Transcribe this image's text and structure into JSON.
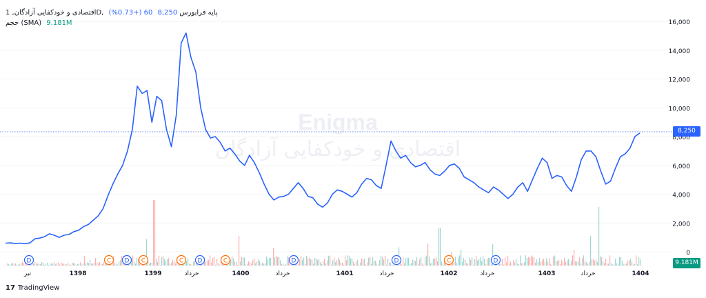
{
  "legend": {
    "symbol": "اقتصادی و خودکفایی آزادگان, 1D, پایه فرابورس",
    "last": "8,250",
    "change": "60 (+0.73%)",
    "volume_label": "حجم (SMA)",
    "volume_value": "9.181M"
  },
  "price_tag": "8,250",
  "volume_tag": "9.181M",
  "watermark": {
    "line1": "Enigma",
    "line2": "اقتصادی و خودکفایی آزادگان"
  },
  "brand": {
    "logo": "17",
    "name": "TradingView"
  },
  "colors": {
    "line": "#2962ff",
    "volume_up": "#26a69a",
    "volume_down": "#ef5350",
    "event_dividend": "#2962ff",
    "event_capital": "#ff6d00"
  },
  "chart_data": {
    "type": "line",
    "x_ticks": [
      "تیر",
      "1398",
      "1399",
      "خرداد",
      "1400",
      "خرداد",
      "1401",
      "خرداد",
      "1402",
      "خرداد",
      "1403",
      "خرداد",
      "1404"
    ],
    "y_ticks": [
      "16,000",
      "14,000",
      "12,000",
      "10,000",
      "8,000",
      "6,000",
      "4,000",
      "2,000",
      "0"
    ],
    "ylim": [
      0,
      16500
    ],
    "last_value": 8250,
    "series": [
      {
        "values": [
          600,
          620,
          580,
          600,
          560,
          620,
          900,
          950,
          1050,
          1250,
          1150,
          1000,
          1150,
          1200,
          1400,
          1500,
          1750,
          1900,
          2200,
          2500,
          3000,
          3900,
          4700,
          5400,
          6000,
          7000,
          8500,
          11500,
          11000,
          11200,
          9000,
          10800,
          10500,
          8500,
          7300,
          9500,
          14500,
          15200,
          13500,
          12500,
          10000,
          8500,
          7900,
          8000,
          7600,
          7000,
          7200,
          6800,
          6300,
          6000,
          6700,
          6200,
          5500,
          4700,
          4000,
          3600,
          3800,
          3850,
          4000,
          4400,
          4800,
          4400,
          3850,
          3750,
          3300,
          3100,
          3400,
          4000,
          4300,
          4200,
          4000,
          3800,
          4100,
          4700,
          5100,
          5000,
          4600,
          4400,
          6000,
          7700,
          7000,
          6500,
          6700,
          6200,
          5900,
          6000,
          6200,
          5700,
          5400,
          5300,
          5600,
          6000,
          6100,
          5800,
          5200,
          5000,
          4800,
          4500,
          4300,
          4100,
          4500,
          4300,
          4000,
          3700,
          4000,
          4500,
          4800,
          4200,
          5000,
          5800,
          6500,
          6200,
          5100,
          5300,
          5200,
          4600,
          4200,
          5200,
          6400,
          7000,
          7000,
          6600,
          5600,
          4700,
          4900,
          5800,
          6600,
          6800,
          7200,
          8000,
          8250
        ]
      }
    ],
    "volume": {
      "sma_last": "9.181M"
    },
    "events": [
      "D",
      "C",
      "D",
      "C",
      "C",
      "D",
      "C",
      "D",
      "D",
      "C",
      "D"
    ]
  }
}
